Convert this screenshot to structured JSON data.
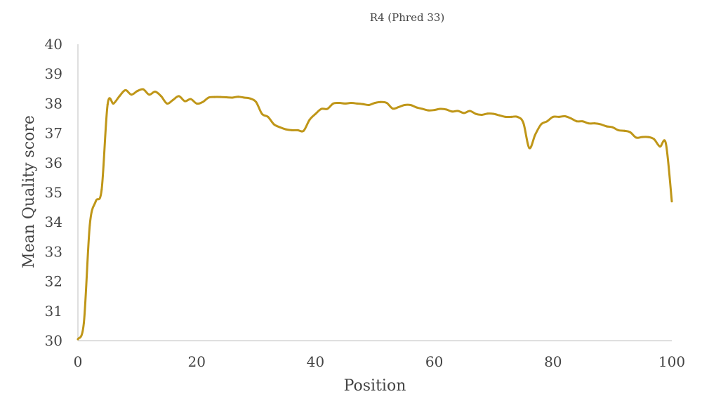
{
  "chart_data": {
    "type": "line",
    "title": "R4 (Phred 33)",
    "xlabel": "Position",
    "ylabel": "Mean Quality score",
    "xlim": [
      0,
      100
    ],
    "ylim": [
      30,
      40
    ],
    "x_ticks": [
      "0",
      "20",
      "40",
      "60",
      "80",
      "100"
    ],
    "y_ticks": [
      "30",
      "31",
      "32",
      "33",
      "34",
      "35",
      "36",
      "37",
      "38",
      "39",
      "40"
    ],
    "grid": false,
    "legend": "none",
    "series": [
      {
        "color": "#BF9618",
        "points": [
          [
            0,
            30.05
          ],
          [
            1,
            30.6
          ],
          [
            2,
            33.9
          ],
          [
            3,
            34.7
          ],
          [
            4,
            35.1
          ],
          [
            5,
            37.97
          ],
          [
            6,
            38.0
          ],
          [
            7,
            38.25
          ],
          [
            8,
            38.45
          ],
          [
            9,
            38.3
          ],
          [
            10,
            38.42
          ],
          [
            11,
            38.48
          ],
          [
            12,
            38.3
          ],
          [
            13,
            38.4
          ],
          [
            14,
            38.25
          ],
          [
            15,
            38.0
          ],
          [
            16,
            38.12
          ],
          [
            17,
            38.25
          ],
          [
            18,
            38.08
          ],
          [
            19,
            38.15
          ],
          [
            20,
            38.0
          ],
          [
            21,
            38.05
          ],
          [
            22,
            38.2
          ],
          [
            23,
            38.22
          ],
          [
            24,
            38.22
          ],
          [
            25,
            38.21
          ],
          [
            26,
            38.2
          ],
          [
            27,
            38.23
          ],
          [
            28,
            38.2
          ],
          [
            29,
            38.17
          ],
          [
            30,
            38.05
          ],
          [
            31,
            37.65
          ],
          [
            32,
            37.55
          ],
          [
            33,
            37.3
          ],
          [
            34,
            37.2
          ],
          [
            35,
            37.13
          ],
          [
            36,
            37.1
          ],
          [
            37,
            37.1
          ],
          [
            38,
            37.08
          ],
          [
            39,
            37.45
          ],
          [
            40,
            37.65
          ],
          [
            41,
            37.82
          ],
          [
            42,
            37.82
          ],
          [
            43,
            38.0
          ],
          [
            44,
            38.02
          ],
          [
            45,
            38.0
          ],
          [
            46,
            38.02
          ],
          [
            47,
            38.0
          ],
          [
            48,
            37.98
          ],
          [
            49,
            37.95
          ],
          [
            50,
            38.02
          ],
          [
            51,
            38.05
          ],
          [
            52,
            38.02
          ],
          [
            53,
            37.83
          ],
          [
            54,
            37.88
          ],
          [
            55,
            37.95
          ],
          [
            56,
            37.95
          ],
          [
            57,
            37.87
          ],
          [
            58,
            37.82
          ],
          [
            59,
            37.77
          ],
          [
            60,
            37.78
          ],
          [
            61,
            37.82
          ],
          [
            62,
            37.8
          ],
          [
            63,
            37.73
          ],
          [
            64,
            37.75
          ],
          [
            65,
            37.68
          ],
          [
            66,
            37.75
          ],
          [
            67,
            37.65
          ],
          [
            68,
            37.62
          ],
          [
            69,
            37.66
          ],
          [
            70,
            37.65
          ],
          [
            71,
            37.6
          ],
          [
            72,
            37.55
          ],
          [
            73,
            37.55
          ],
          [
            74,
            37.55
          ],
          [
            75,
            37.35
          ],
          [
            76,
            36.5
          ],
          [
            77,
            36.95
          ],
          [
            78,
            37.3
          ],
          [
            79,
            37.4
          ],
          [
            80,
            37.55
          ],
          [
            81,
            37.55
          ],
          [
            82,
            37.57
          ],
          [
            83,
            37.5
          ],
          [
            84,
            37.4
          ],
          [
            85,
            37.4
          ],
          [
            86,
            37.33
          ],
          [
            87,
            37.33
          ],
          [
            88,
            37.3
          ],
          [
            89,
            37.23
          ],
          [
            90,
            37.2
          ],
          [
            91,
            37.1
          ],
          [
            92,
            37.08
          ],
          [
            93,
            37.03
          ],
          [
            94,
            36.85
          ],
          [
            95,
            36.87
          ],
          [
            96,
            36.87
          ],
          [
            97,
            36.8
          ],
          [
            98,
            36.55
          ],
          [
            99,
            36.65
          ],
          [
            100,
            34.7
          ]
        ]
      }
    ]
  }
}
